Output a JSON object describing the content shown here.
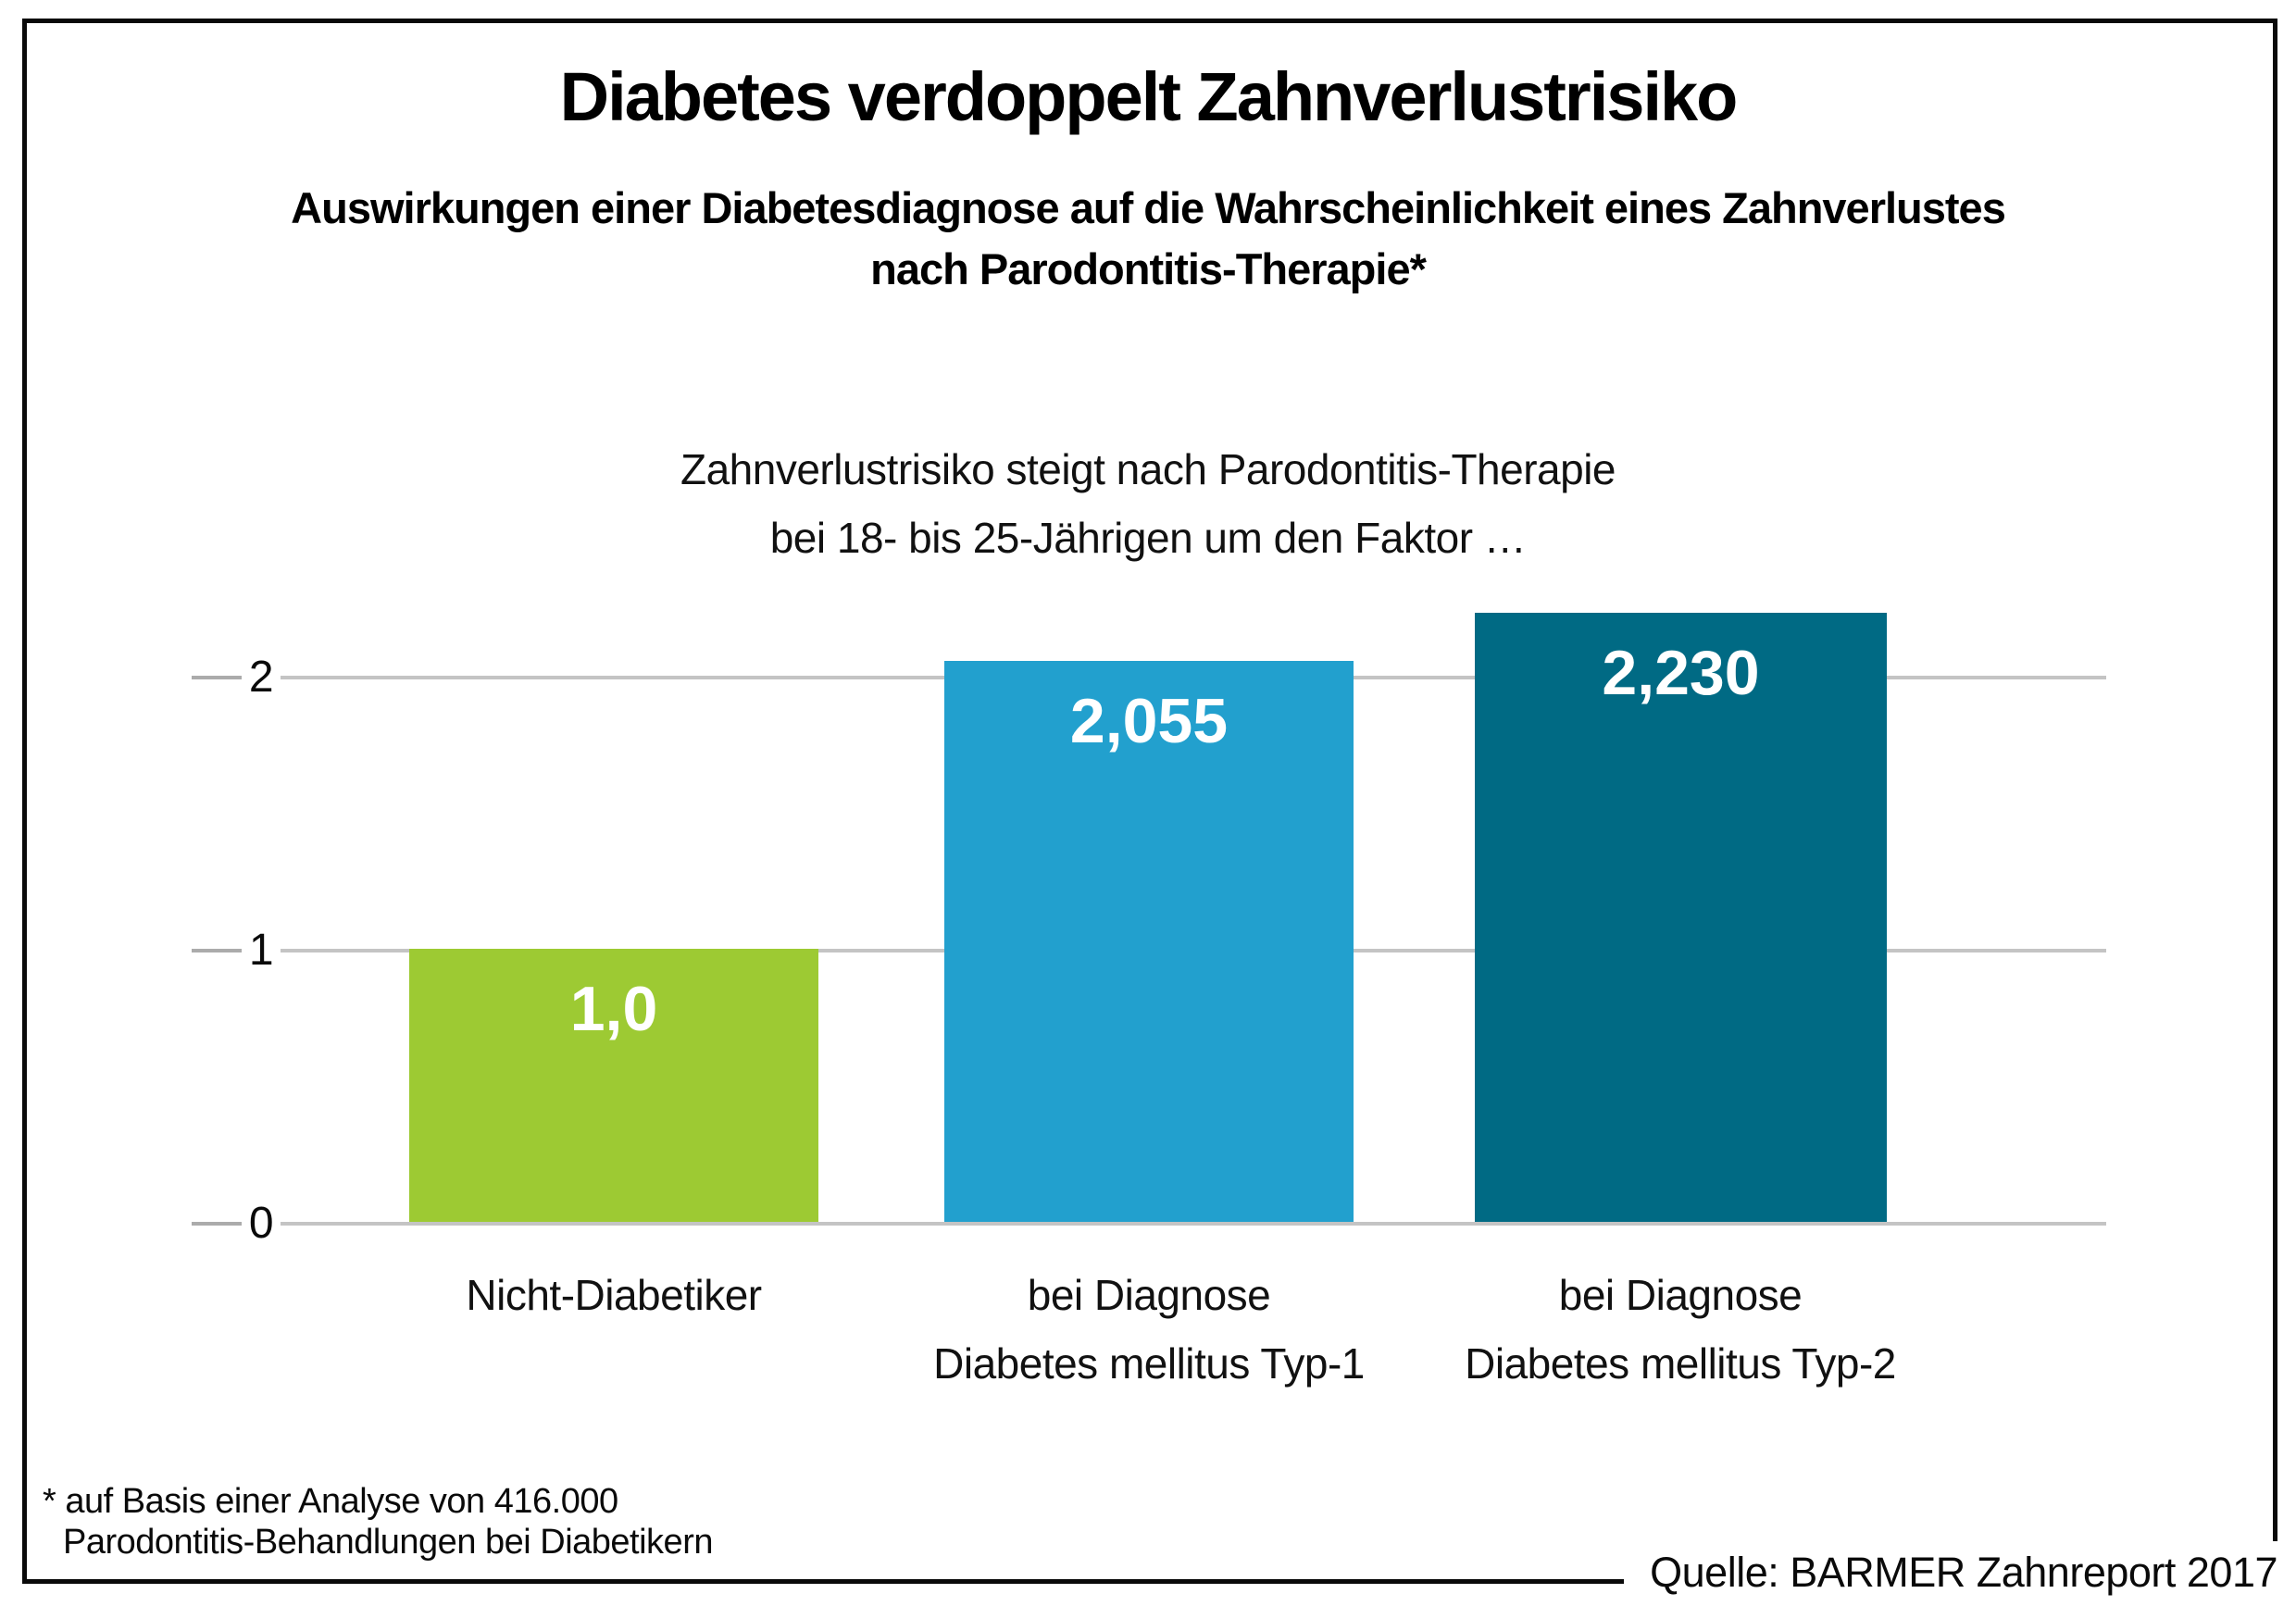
{
  "header": {
    "title": "Diabetes verdoppelt Zahnverlustrisiko",
    "subtitle_line1": "Auswirkungen einer Diabetesdiagnose auf die Wahrscheinlichkeit eines Zahnverlustes",
    "subtitle_line2": "nach Parodontitis-Therapie*"
  },
  "chart_data": {
    "type": "bar",
    "title": "Zahnverlustrisiko steigt nach Parodontitis-Therapie bei 18- bis 25-Jährigen um den Faktor …",
    "title_lines": [
      "Zahnverlustrisiko steigt nach Parodontitis-Therapie",
      "bei 18- bis 25-Jährigen um den Faktor …"
    ],
    "categories": [
      [
        "Nicht-Diabetiker"
      ],
      [
        "bei Diagnose",
        "Diabetes mellitus Typ-1"
      ],
      [
        "bei Diagnose",
        "Diabetes mellitus Typ-2"
      ]
    ],
    "values": [
      1.0,
      2.055,
      2.23
    ],
    "value_labels": [
      "1,0",
      "2,055",
      "2,230"
    ],
    "bar_colors": [
      "#9dca33",
      "#22a0ce",
      "#006a84"
    ],
    "yticks": [
      0,
      1,
      2
    ],
    "ytick_labels": [
      "0",
      "1",
      "2"
    ],
    "ylim": [
      0,
      2.3
    ],
    "grid": true,
    "legend": "none",
    "xlabel": "",
    "ylabel": ""
  },
  "footnote": {
    "line1": "* auf Basis einer Analyse von 416.000",
    "line2": "Parodontitis-Behandlungen bei Diabetikern"
  },
  "source": "Quelle: BARMER Zahnreport 2017"
}
